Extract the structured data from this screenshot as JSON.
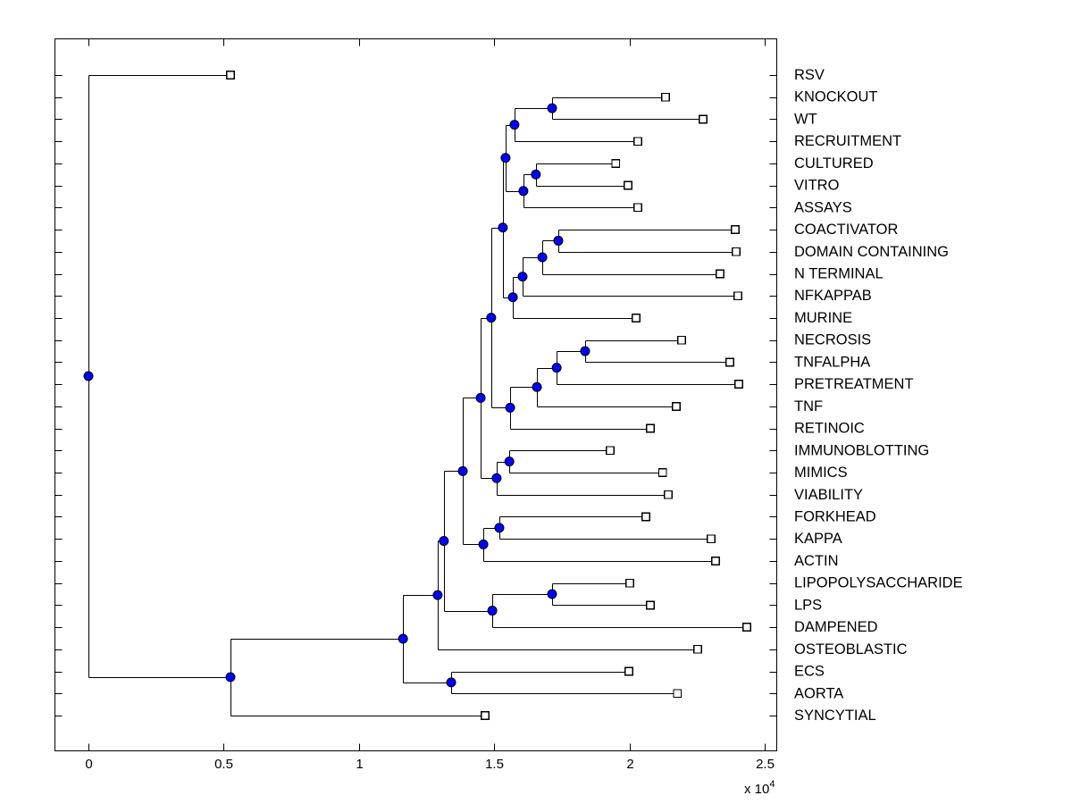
{
  "figure": {
    "kind": "MATLAB-style phylogenetic / hierarchical clustering dendrogram",
    "background": "#ffffff"
  },
  "chart_data": {
    "type": "dendrogram",
    "orientation": "horizontal, leaves on right",
    "title": "",
    "xlabel": "",
    "ylabel": "",
    "x_units_note": "branch distance values are in units of 1e4 (axis multiplier 'x 10^4')",
    "x_axis": {
      "ticks": [
        0,
        0.5,
        1,
        1.5,
        2,
        2.5
      ],
      "tick_labels": [
        "0",
        "0.5",
        "1",
        "1.5",
        "2",
        "2.5"
      ],
      "multiplier_text": "x 10",
      "multiplier_exponent": "4",
      "range": [
        0,
        2.5
      ],
      "grid": false
    },
    "style": {
      "line_color": "#000000",
      "branch_node_fill": "#0000ff",
      "branch_node_stroke": "#000000",
      "leaf_marker_fill": "#ffffff",
      "leaf_marker_stroke": "#000000"
    },
    "leaves": [
      {
        "id": "L1",
        "label": "RSV",
        "x": 0.525
      },
      {
        "id": "L2",
        "label": "KNOCKOUT",
        "x": 2.133
      },
      {
        "id": "L3",
        "label": "WT",
        "x": 2.272
      },
      {
        "id": "L4",
        "label": "RECRUITMENT",
        "x": 2.031
      },
      {
        "id": "L5",
        "label": "CULTURED",
        "x": 1.949
      },
      {
        "id": "L6",
        "label": "VITRO",
        "x": 1.995
      },
      {
        "id": "L7",
        "label": "ASSAYS",
        "x": 2.031
      },
      {
        "id": "L8",
        "label": "COACTIVATOR",
        "x": 2.391
      },
      {
        "id": "L9",
        "label": "DOMAIN CONTAINING",
        "x": 2.394
      },
      {
        "id": "L10",
        "label": "N TERMINAL",
        "x": 2.335
      },
      {
        "id": "L11",
        "label": "NFKAPPAB",
        "x": 2.401
      },
      {
        "id": "L12",
        "label": "MURINE",
        "x": 2.024
      },
      {
        "id": "L13",
        "label": "NECROSIS",
        "x": 2.193
      },
      {
        "id": "L14",
        "label": "TNFALPHA",
        "x": 2.371
      },
      {
        "id": "L15",
        "label": "PRETREATMENT",
        "x": 2.404
      },
      {
        "id": "L16",
        "label": "TNF",
        "x": 2.173
      },
      {
        "id": "L17",
        "label": "RETINOIC",
        "x": 2.077
      },
      {
        "id": "L18",
        "label": "IMMUNOBLOTTING",
        "x": 1.929
      },
      {
        "id": "L19",
        "label": "MIMICS",
        "x": 2.123
      },
      {
        "id": "L20",
        "label": "VIABILITY",
        "x": 2.143
      },
      {
        "id": "L21",
        "label": "FORKHEAD",
        "x": 2.061
      },
      {
        "id": "L22",
        "label": "KAPPA",
        "x": 2.302
      },
      {
        "id": "L23",
        "label": "ACTIN",
        "x": 2.318
      },
      {
        "id": "L24",
        "label": "LIPOPOLYSACCHARIDE",
        "x": 2.001
      },
      {
        "id": "L25",
        "label": "LPS",
        "x": 2.077
      },
      {
        "id": "L26",
        "label": "DAMPENED",
        "x": 2.434
      },
      {
        "id": "L27",
        "label": "OSTEOBLASTIC",
        "x": 2.252
      },
      {
        "id": "L28",
        "label": "ECS",
        "x": 1.998
      },
      {
        "id": "L29",
        "label": "AORTA",
        "x": 2.177
      },
      {
        "id": "L30",
        "label": "SYNCYTIAL",
        "x": 1.466
      }
    ],
    "nodes": [
      {
        "id": "N1",
        "x": 1.714,
        "children": [
          "L2",
          "L3"
        ]
      },
      {
        "id": "N2",
        "x": 1.575,
        "children": [
          "N1",
          "L4"
        ]
      },
      {
        "id": "N3",
        "x": 1.654,
        "children": [
          "L5",
          "L6"
        ]
      },
      {
        "id": "N4",
        "x": 1.608,
        "children": [
          "N3",
          "L7"
        ]
      },
      {
        "id": "N5",
        "x": 1.542,
        "children": [
          "N2",
          "N4"
        ]
      },
      {
        "id": "N6",
        "x": 1.737,
        "children": [
          "L8",
          "L9"
        ]
      },
      {
        "id": "N7",
        "x": 1.678,
        "children": [
          "N6",
          "L10"
        ]
      },
      {
        "id": "N8",
        "x": 1.605,
        "children": [
          "N7",
          "L11"
        ]
      },
      {
        "id": "N9",
        "x": 1.569,
        "children": [
          "N8",
          "L12"
        ]
      },
      {
        "id": "N10",
        "x": 1.532,
        "children": [
          "N5",
          "N9"
        ]
      },
      {
        "id": "N11",
        "x": 1.836,
        "children": [
          "L13",
          "L14"
        ]
      },
      {
        "id": "N12",
        "x": 1.731,
        "children": [
          "N11",
          "L15"
        ]
      },
      {
        "id": "N13",
        "x": 1.658,
        "children": [
          "N12",
          "L16"
        ]
      },
      {
        "id": "N14",
        "x": 1.559,
        "children": [
          "N13",
          "L17"
        ]
      },
      {
        "id": "N15",
        "x": 1.489,
        "children": [
          "N10",
          "N14"
        ]
      },
      {
        "id": "N16",
        "x": 1.556,
        "children": [
          "L18",
          "L19"
        ]
      },
      {
        "id": "N17",
        "x": 1.509,
        "children": [
          "N16",
          "L20"
        ]
      },
      {
        "id": "N18",
        "x": 1.45,
        "children": [
          "N15",
          "N17"
        ]
      },
      {
        "id": "N19",
        "x": 1.519,
        "children": [
          "L21",
          "L22"
        ]
      },
      {
        "id": "N20",
        "x": 1.46,
        "children": [
          "N19",
          "L23"
        ]
      },
      {
        "id": "N21",
        "x": 1.384,
        "children": [
          "N18",
          "N20"
        ]
      },
      {
        "id": "N22",
        "x": 1.714,
        "children": [
          "L24",
          "L25"
        ]
      },
      {
        "id": "N23",
        "x": 1.493,
        "children": [
          "N22",
          "L26"
        ]
      },
      {
        "id": "N24",
        "x": 1.314,
        "children": [
          "N21",
          "N23"
        ]
      },
      {
        "id": "N25",
        "x": 1.291,
        "children": [
          "N24",
          "L27"
        ]
      },
      {
        "id": "N26",
        "x": 1.341,
        "children": [
          "L28",
          "L29"
        ]
      },
      {
        "id": "N27",
        "x": 1.163,
        "children": [
          "N25",
          "N26"
        ]
      },
      {
        "id": "N28",
        "x": 0.525,
        "children": [
          "N27",
          "L30"
        ]
      },
      {
        "id": "N29",
        "x": 0.0,
        "children": [
          "L1",
          "N28"
        ]
      }
    ]
  }
}
